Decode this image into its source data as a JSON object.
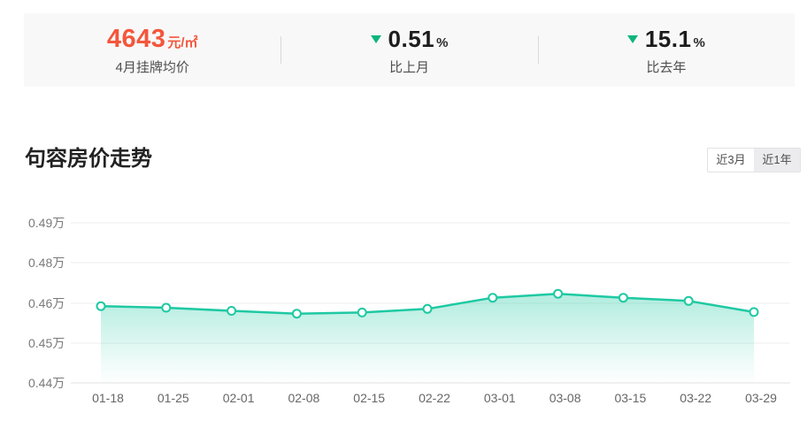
{
  "stats_bar": {
    "price": {
      "value": "4643",
      "unit": "元/㎡",
      "label": "4月挂牌均价",
      "color": "#f4563c"
    },
    "mom": {
      "value": "0.51",
      "unit": "%",
      "label": "比上月",
      "direction": "down"
    },
    "yoy": {
      "value": "15.1",
      "unit": "%",
      "label": "比去年",
      "direction": "down"
    },
    "trend_down_color": "#0bb57e"
  },
  "section": {
    "title": "句容房价走势",
    "tabs": [
      {
        "label": "近3月",
        "active": true
      },
      {
        "label": "近1年",
        "active": false
      }
    ]
  },
  "chart_data": {
    "type": "line",
    "title": "句容房价走势",
    "x": [
      "01-18",
      "01-25",
      "02-01",
      "02-08",
      "02-15",
      "02-22",
      "03-01",
      "03-08",
      "03-15",
      "03-22",
      "03-29"
    ],
    "series": [
      {
        "name": "挂牌均价",
        "unit": "万元/㎡",
        "values": [
          0.4593,
          0.4589,
          0.4581,
          0.4574,
          0.4577,
          0.4586,
          0.4614,
          0.4624,
          0.4614,
          0.4606,
          0.4578
        ]
      }
    ],
    "y_ticks": [
      "0.49万",
      "0.48万",
      "0.46万",
      "0.45万",
      "0.44万"
    ],
    "ylim": [
      0.44,
      0.49
    ],
    "grid": true,
    "legend_position": "none",
    "smooth": true,
    "colors": {
      "line": "#1ec9a2",
      "marker_fill": "#ffffff",
      "area_top": "rgba(30,201,162,0.32)",
      "area_bottom": "rgba(30,201,162,0)",
      "gridline": "#ededed",
      "axis_line": "#e2e2e2"
    }
  }
}
